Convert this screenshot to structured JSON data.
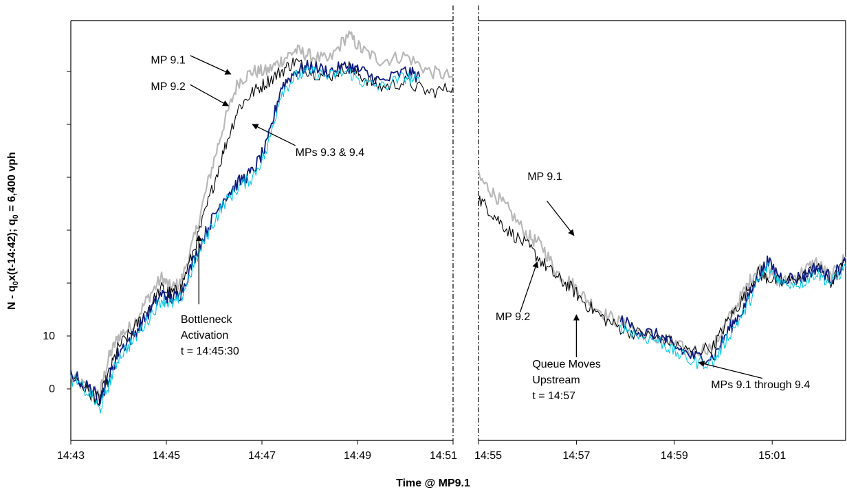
{
  "chart_data": {
    "type": "line",
    "title": "",
    "xlabel": "Time @ MP9.1",
    "ylabel_main": "N - q",
    "ylabel_sub1": "0",
    "ylabel_mid": "x(t-14:42); q",
    "ylabel_sub2": "0",
    "ylabel_end": " = 6,400 vph",
    "y_ticks": [
      {
        "value": 0,
        "label": "0"
      },
      {
        "value": 10,
        "label": "10"
      }
    ],
    "ylim": [
      -10,
      70
    ],
    "panels": [
      {
        "xlim_min": [
          0,
          8
        ],
        "x_ticks": [
          {
            "t": 0,
            "label": "14:43"
          },
          {
            "t": 2,
            "label": "14:45"
          },
          {
            "t": 4,
            "label": "14:47"
          },
          {
            "t": 6,
            "label": "14:49"
          },
          {
            "t": 8,
            "label": "14:51"
          }
        ]
      },
      {
        "xlim_min": [
          12,
          19.5
        ],
        "x_ticks": [
          {
            "t": 12,
            "label": "14:55"
          },
          {
            "t": 14,
            "label": "14:57"
          },
          {
            "t": 16,
            "label": "14:59"
          },
          {
            "t": 18,
            "label": "15:01"
          }
        ]
      }
    ],
    "series": [
      {
        "name": "MP 9.1",
        "color": "#b8b8b8",
        "segments": [
          [
            [
              0,
              2
            ],
            [
              0.4,
              0
            ],
            [
              0.6,
              -1
            ],
            [
              0.8,
              6
            ],
            [
              1,
              10
            ],
            [
              1.3,
              12
            ],
            [
              1.6,
              17
            ],
            [
              1.9,
              21
            ],
            [
              2.1,
              19
            ],
            [
              2.3,
              20
            ],
            [
              2.6,
              29
            ],
            [
              2.9,
              40
            ],
            [
              3.2,
              50
            ],
            [
              3.5,
              58
            ],
            [
              3.8,
              60
            ],
            [
              4.1,
              60
            ],
            [
              4.4,
              62
            ],
            [
              4.7,
              64
            ],
            [
              5,
              63
            ],
            [
              5.4,
              62
            ],
            [
              5.8,
              67
            ],
            [
              6.1,
              64
            ],
            [
              6.5,
              62
            ],
            [
              7,
              63
            ],
            [
              7.5,
              60
            ],
            [
              8,
              59
            ]
          ],
          [
            [
              12,
              40
            ],
            [
              12.3,
              37
            ],
            [
              12.6,
              34
            ],
            [
              13,
              29
            ],
            [
              13.3,
              27
            ],
            [
              13.6,
              22
            ],
            [
              13.9,
              20
            ],
            [
              14.2,
              17
            ],
            [
              14.6,
              14
            ],
            [
              15,
              12
            ],
            [
              15.5,
              10
            ],
            [
              15.9,
              9
            ],
            [
              16.3,
              7
            ],
            [
              16.8,
              8
            ],
            [
              17.1,
              13
            ],
            [
              17.4,
              18
            ],
            [
              17.7,
              23
            ],
            [
              17.9,
              22
            ],
            [
              18.2,
              20
            ],
            [
              18.6,
              22
            ],
            [
              18.9,
              24
            ],
            [
              19.2,
              21
            ],
            [
              19.5,
              25
            ]
          ]
        ]
      },
      {
        "name": "MP 9.2",
        "color": "#000000",
        "segments": [
          [
            [
              0,
              3
            ],
            [
              0.4,
              -1
            ],
            [
              0.6,
              -2
            ],
            [
              0.8,
              3
            ],
            [
              1,
              8
            ],
            [
              1.3,
              11
            ],
            [
              1.6,
              15
            ],
            [
              1.9,
              19
            ],
            [
              2.1,
              18
            ],
            [
              2.3,
              19
            ],
            [
              2.6,
              27
            ],
            [
              2.9,
              36
            ],
            [
              3.2,
              45
            ],
            [
              3.5,
              53
            ],
            [
              3.8,
              56
            ],
            [
              4.1,
              58
            ],
            [
              4.4,
              60
            ],
            [
              4.7,
              62
            ],
            [
              5,
              60
            ],
            [
              5.4,
              59
            ],
            [
              5.8,
              61
            ],
            [
              6.1,
              59
            ],
            [
              6.5,
              57
            ],
            [
              7,
              58
            ],
            [
              7.5,
              56
            ],
            [
              8,
              57
            ]
          ],
          [
            [
              12,
              36
            ],
            [
              12.3,
              33
            ],
            [
              12.6,
              30
            ],
            [
              13,
              27
            ],
            [
              13.3,
              24
            ],
            [
              13.6,
              21
            ],
            [
              13.9,
              19
            ],
            [
              14.2,
              16
            ],
            [
              14.6,
              13
            ],
            [
              15,
              11
            ],
            [
              15.5,
              10
            ],
            [
              15.9,
              9
            ],
            [
              16.3,
              7
            ],
            [
              16.8,
              8
            ],
            [
              17.1,
              13
            ],
            [
              17.4,
              17
            ],
            [
              17.7,
              22
            ],
            [
              17.9,
              21
            ],
            [
              18.2,
              20
            ],
            [
              18.6,
              21
            ],
            [
              18.9,
              23
            ],
            [
              19.2,
              20
            ],
            [
              19.5,
              24
            ]
          ]
        ]
      },
      {
        "name": "MP 9.3",
        "color": "#0b1a80",
        "segments": [
          [
            [
              0,
              3
            ],
            [
              0.4,
              0
            ],
            [
              0.6,
              -2
            ],
            [
              0.8,
              2
            ],
            [
              1,
              7
            ],
            [
              1.3,
              10
            ],
            [
              1.6,
              14
            ],
            [
              1.9,
              18
            ],
            [
              2.1,
              17
            ],
            [
              2.3,
              18
            ],
            [
              2.6,
              25
            ],
            [
              2.9,
              31
            ],
            [
              3.2,
              36
            ],
            [
              3.5,
              39
            ],
            [
              3.8,
              41
            ],
            [
              4.1,
              46
            ],
            [
              4.4,
              57
            ],
            [
              4.7,
              60
            ],
            [
              5,
              61
            ],
            [
              5.4,
              60
            ],
            [
              5.8,
              61
            ],
            [
              6.1,
              60
            ],
            [
              6.5,
              58
            ],
            [
              7,
              60
            ],
            [
              7.3,
              59
            ]
          ],
          [
            [
              14.9,
              13
            ],
            [
              15.3,
              11
            ],
            [
              15.7,
              10
            ],
            [
              16,
              8
            ],
            [
              16.4,
              6
            ],
            [
              16.8,
              6
            ],
            [
              17.1,
              11
            ],
            [
              17.4,
              15
            ],
            [
              17.7,
              21
            ],
            [
              17.9,
              24
            ],
            [
              18.2,
              21
            ],
            [
              18.6,
              21
            ],
            [
              18.9,
              23
            ],
            [
              19.2,
              21
            ],
            [
              19.5,
              24
            ]
          ]
        ]
      },
      {
        "name": "MP 9.4",
        "color": "#00c8e6",
        "segments": [
          [
            [
              0,
              2
            ],
            [
              0.4,
              -1
            ],
            [
              0.6,
              -4
            ],
            [
              0.8,
              1
            ],
            [
              1,
              6
            ],
            [
              1.3,
              9
            ],
            [
              1.6,
              13
            ],
            [
              1.9,
              17
            ],
            [
              2.1,
              16
            ],
            [
              2.3,
              17
            ],
            [
              2.6,
              24
            ],
            [
              2.9,
              30
            ],
            [
              3.2,
              35
            ],
            [
              3.5,
              38
            ],
            [
              3.8,
              40
            ],
            [
              4.1,
              45
            ],
            [
              4.4,
              56
            ],
            [
              4.7,
              59
            ],
            [
              5,
              60
            ],
            [
              5.4,
              59
            ],
            [
              5.8,
              60
            ],
            [
              6.1,
              58
            ],
            [
              6.5,
              57
            ],
            [
              7,
              59
            ],
            [
              7.3,
              58
            ]
          ],
          [
            [
              14.9,
              12
            ],
            [
              15.3,
              10
            ],
            [
              15.7,
              9
            ],
            [
              16,
              7
            ],
            [
              16.4,
              5
            ],
            [
              16.8,
              5
            ],
            [
              17.1,
              10
            ],
            [
              17.4,
              14
            ],
            [
              17.7,
              20
            ],
            [
              17.9,
              23
            ],
            [
              18.2,
              20
            ],
            [
              18.6,
              20
            ],
            [
              18.9,
              22
            ],
            [
              19.2,
              20
            ],
            [
              19.5,
              23
            ]
          ]
        ]
      }
    ],
    "annotations": [
      {
        "lines": [
          "MP 9.1"
        ],
        "tx": 2.4,
        "ty": 61.5,
        "ax": 3.35,
        "ay": 59.5,
        "hx": 2.5,
        "hy": 63,
        "anchor": "end"
      },
      {
        "lines": [
          "MP 9.2"
        ],
        "tx": 2.4,
        "ty": 56.5,
        "ax": 3.3,
        "ay": 53.5,
        "hx": 2.5,
        "hy": 57.5,
        "anchor": "end"
      },
      {
        "lines": [
          "MPs 9.3 & 9.4"
        ],
        "tx": 4.7,
        "ty": 44,
        "ax": 3.8,
        "ay": 50,
        "hx": 4.7,
        "hy": 46,
        "anchor": "start"
      },
      {
        "lines": [
          "Bottleneck",
          "Activation",
          "t = 14:45:30"
        ],
        "tx": 2.3,
        "ty": 12.5,
        "ax": 2.68,
        "ay": 29,
        "hx": 2.68,
        "hy": 16,
        "anchor": "start"
      },
      {
        "lines": [
          "MP 9.1"
        ],
        "tx": 13.0,
        "ty": 39.5,
        "ax": 13.95,
        "ay": 29,
        "hx": 13.4,
        "hy": 35.5,
        "anchor": "start"
      },
      {
        "lines": [
          "MP 9.2"
        ],
        "tx": 12.35,
        "ty": 13.0,
        "ax": 13.2,
        "ay": 24,
        "hx": 12.85,
        "hy": 14.5,
        "anchor": "start"
      },
      {
        "lines": [
          "Queue Moves",
          "Upstream",
          "t = 14:57"
        ],
        "tx": 13.1,
        "ty": 4.0,
        "ax": 14.0,
        "ay": 14,
        "hx": 14.0,
        "hy": 6,
        "anchor": "start"
      },
      {
        "lines": [
          "MPs 9.1 through 9.4"
        ],
        "tx": 16.75,
        "ty": 0.1,
        "ax": 16.5,
        "ay": 5,
        "hx": 17.8,
        "hy": 2,
        "anchor": "start"
      }
    ]
  }
}
